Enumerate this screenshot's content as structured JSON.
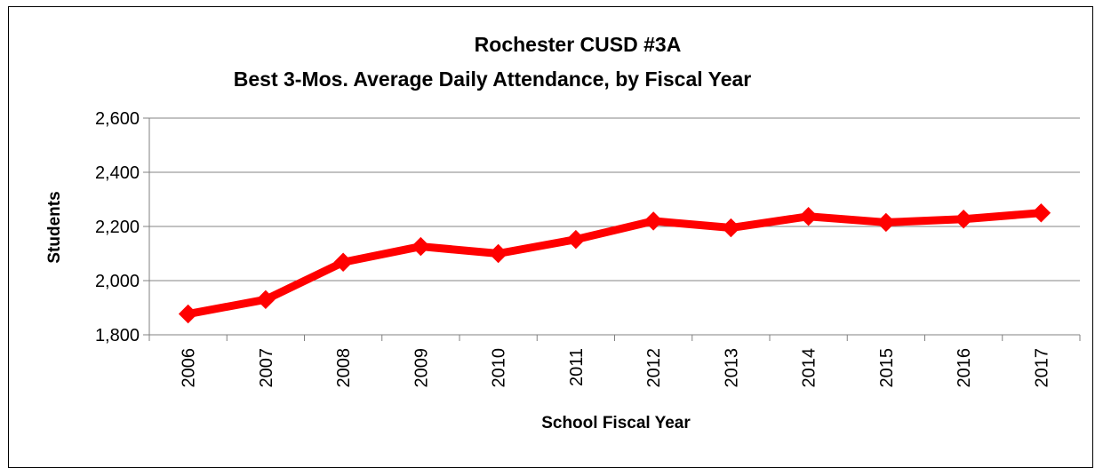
{
  "chart_data": {
    "type": "line",
    "title": "Rochester CUSD #3A",
    "subtitle": "Best 3-Mos. Average Daily Attendance, by Fiscal Year",
    "xlabel": "School Fiscal Year",
    "ylabel": "Students",
    "categories": [
      "2006",
      "2007",
      "2008",
      "2009",
      "2010",
      "2011",
      "2012",
      "2013",
      "2014",
      "2015",
      "2016",
      "2017"
    ],
    "series": [
      {
        "values": [
          1877,
          1930,
          2068,
          2126,
          2100,
          2152,
          2220,
          2195,
          2237,
          2215,
          2227,
          2250
        ],
        "color": "#ff0000",
        "marker": "diamond"
      }
    ],
    "ylim": [
      1800,
      2600
    ],
    "yticks": [
      1800,
      2000,
      2200,
      2400,
      2600
    ],
    "ytick_labels": [
      "1,800",
      "2,000",
      "2,200",
      "2,400",
      "2,600"
    ],
    "grid": "horizontal",
    "legend": "none"
  }
}
